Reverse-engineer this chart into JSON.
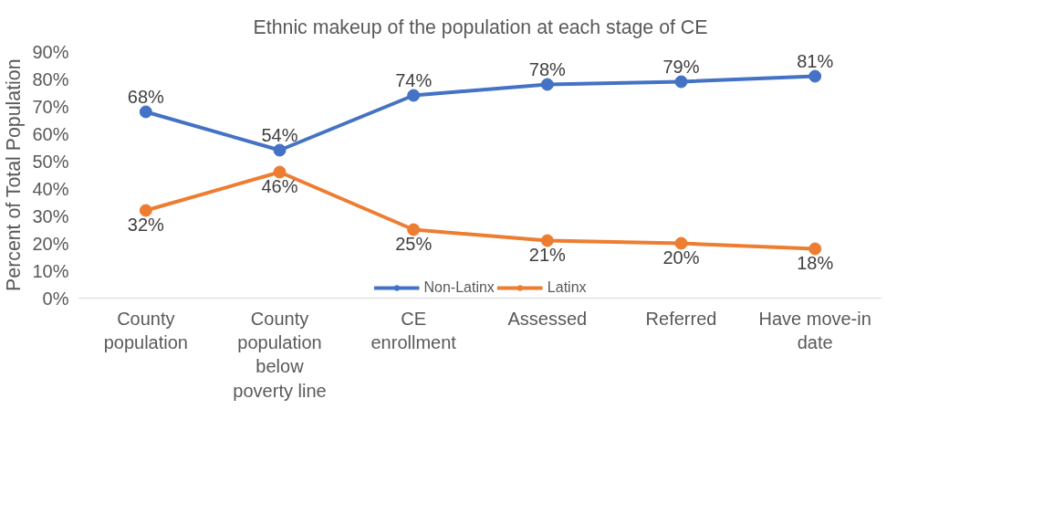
{
  "chart_data": {
    "type": "line",
    "title": "Ethnic makeup of the population at each stage of CE",
    "ylabel": "Percent of Total Population",
    "categories": [
      "County population",
      "County population below poverty line",
      "CE enrollment",
      "Assessed",
      "Referred",
      "Have move-in date"
    ],
    "series": [
      {
        "name": "Non-Latinx",
        "color": "#4472c4",
        "values": [
          68,
          54,
          74,
          78,
          79,
          81
        ],
        "value_labels": [
          "68%",
          "54%",
          "74%",
          "78%",
          "79%",
          "81%"
        ]
      },
      {
        "name": "Latinx",
        "color": "#ed7d31",
        "values": [
          32,
          46,
          25,
          21,
          20,
          18
        ],
        "value_labels": [
          "32%",
          "46%",
          "25%",
          "21%",
          "20%",
          "18%"
        ]
      }
    ],
    "ylim": [
      0,
      90
    ],
    "yticks": [
      {
        "value": 0,
        "label": "0%"
      },
      {
        "value": 10,
        "label": "10%"
      },
      {
        "value": 20,
        "label": "20%"
      },
      {
        "value": 30,
        "label": "30%"
      },
      {
        "value": 40,
        "label": "40%"
      },
      {
        "value": 50,
        "label": "50%"
      },
      {
        "value": 60,
        "label": "60%"
      },
      {
        "value": 70,
        "label": "70%"
      },
      {
        "value": 80,
        "label": "80%"
      },
      {
        "value": 90,
        "label": "90%"
      }
    ],
    "grid": false,
    "legend": "bottom",
    "marker": "circle",
    "line_style": "solid"
  }
}
